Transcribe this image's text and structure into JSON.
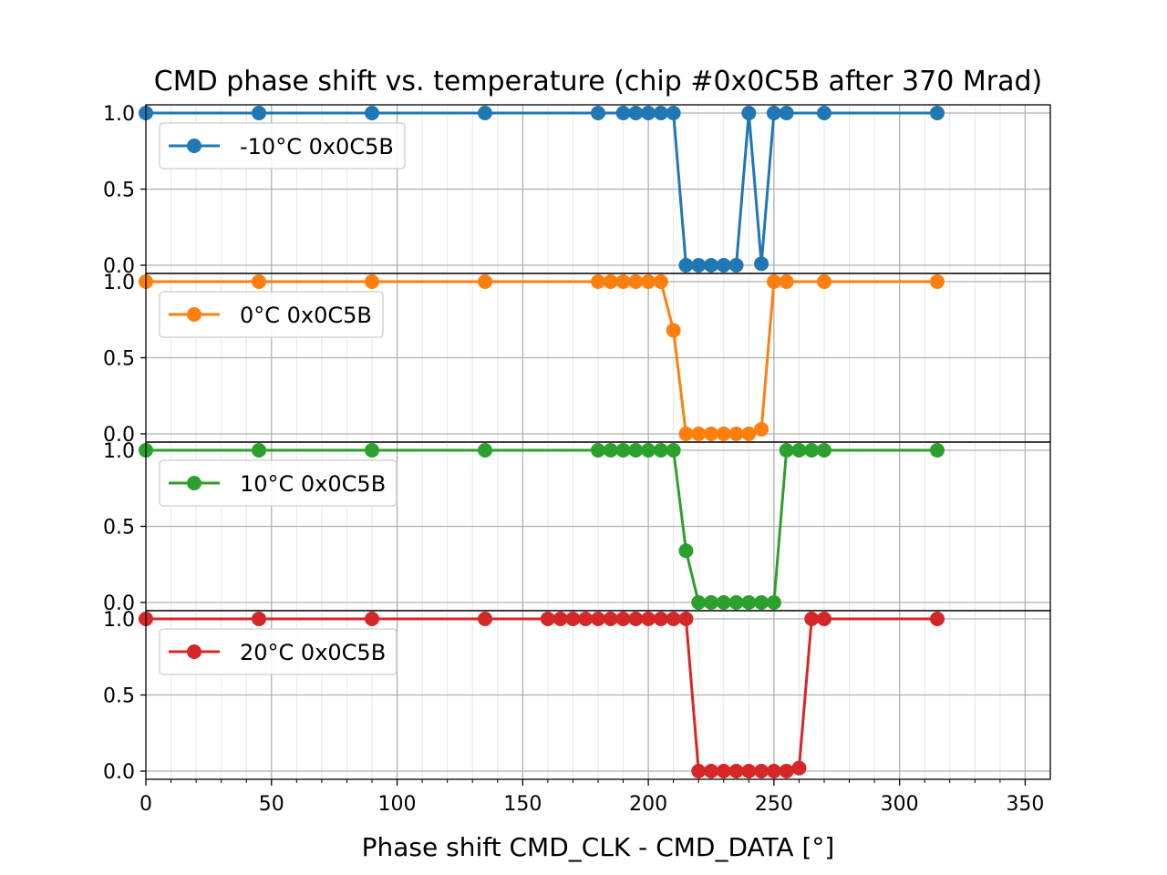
{
  "chart_data": {
    "type": "line",
    "title": "CMD phase shift vs. temperature (chip #0x0C5B after 370 Mrad)",
    "xlabel": "Phase shift CMD_CLK - CMD_DATA [°]",
    "ylabel": "",
    "xlim": [
      0,
      360
    ],
    "ylim": [
      -0.03,
      1.03
    ],
    "x_ticks": [
      "0",
      "50",
      "100",
      "150",
      "200",
      "250",
      "300",
      "350"
    ],
    "y_ticks": [
      "0.0",
      "0.5",
      "1.0"
    ],
    "grid": true,
    "minor_grid_x_step": 10,
    "legend_position": "upper-left",
    "panels": [
      {
        "name": "-10°C 0x0C5B",
        "color": "#1f77b4",
        "x": [
          0,
          45,
          90,
          135,
          180,
          190,
          195,
          200,
          205,
          210,
          215,
          220,
          225,
          230,
          235,
          240,
          245,
          250,
          255,
          270,
          315
        ],
        "y": [
          1,
          1,
          1,
          1,
          1,
          1,
          1,
          1,
          1,
          1,
          0,
          0,
          0,
          0,
          0,
          1,
          0.01,
          1,
          1,
          1,
          1
        ]
      },
      {
        "name": "0°C 0x0C5B",
        "color": "#ff7f0e",
        "x": [
          0,
          45,
          90,
          135,
          180,
          185,
          190,
          195,
          200,
          205,
          210,
          215,
          220,
          225,
          230,
          235,
          240,
          245,
          250,
          255,
          270,
          315
        ],
        "y": [
          1,
          1,
          1,
          1,
          1,
          1,
          1,
          1,
          1,
          1,
          0.68,
          0,
          0,
          0,
          0,
          0,
          0,
          0.03,
          1,
          1,
          1,
          1
        ]
      },
      {
        "name": "10°C 0x0C5B",
        "color": "#2ca02c",
        "x": [
          0,
          45,
          90,
          135,
          180,
          185,
          190,
          195,
          200,
          205,
          210,
          215,
          220,
          225,
          230,
          235,
          240,
          245,
          250,
          255,
          260,
          265,
          270,
          315
        ],
        "y": [
          1,
          1,
          1,
          1,
          1,
          1,
          1,
          1,
          1,
          1,
          1,
          0.34,
          0,
          0,
          0,
          0,
          0,
          0,
          0,
          1,
          1,
          1,
          1,
          1
        ]
      },
      {
        "name": "20°C 0x0C5B",
        "color": "#d62728",
        "x": [
          0,
          45,
          90,
          135,
          160,
          165,
          170,
          175,
          180,
          185,
          190,
          195,
          200,
          205,
          210,
          215,
          220,
          225,
          230,
          235,
          240,
          245,
          250,
          255,
          260,
          265,
          270,
          315
        ],
        "y": [
          1,
          1,
          1,
          1,
          1,
          1,
          1,
          1,
          1,
          1,
          1,
          1,
          1,
          1,
          1,
          1,
          0,
          0,
          0,
          0,
          0,
          0,
          0,
          0,
          0.02,
          1,
          1,
          1
        ]
      }
    ]
  }
}
